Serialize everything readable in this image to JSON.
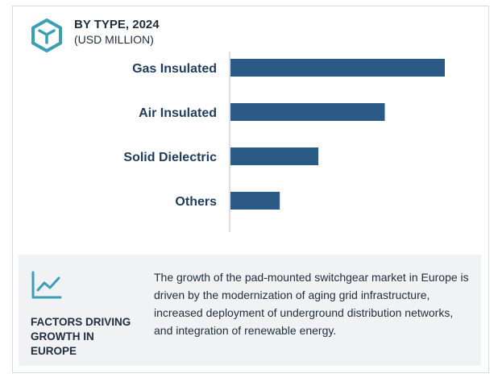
{
  "header": {
    "title": "BY TYPE, 2024",
    "subtitle": "(USD MILLION)",
    "icon": "hexagon-cube-icon"
  },
  "chart_data": {
    "type": "bar",
    "orientation": "horizontal",
    "title": "BY TYPE, 2024",
    "subtitle": "(USD MILLION)",
    "categories": [
      "Gas Insulated",
      "Air Insulated",
      "Solid Dielectric",
      "Others"
    ],
    "values": [
      100,
      72,
      41,
      23
    ],
    "xlim": [
      0,
      100
    ],
    "xlabel": "",
    "ylabel": "",
    "grid": false,
    "legend": "none",
    "color": "#2c5a86"
  },
  "footer": {
    "icon": "trend-line-icon",
    "heading_lines": [
      "FACTORS DRIVING",
      "GROWTH IN",
      "EUROPE"
    ],
    "description": "The growth of the pad-mounted switchgear market in Europe is driven by the modernization of aging grid infrastructure, increased deployment of underground distribution networks, and integration of renewable energy."
  },
  "colors": {
    "bar": "#2c5a86",
    "accent_teal": "#3a9fb5",
    "text": "#1f2d3d",
    "footer_bg": "#f0f2f4"
  }
}
